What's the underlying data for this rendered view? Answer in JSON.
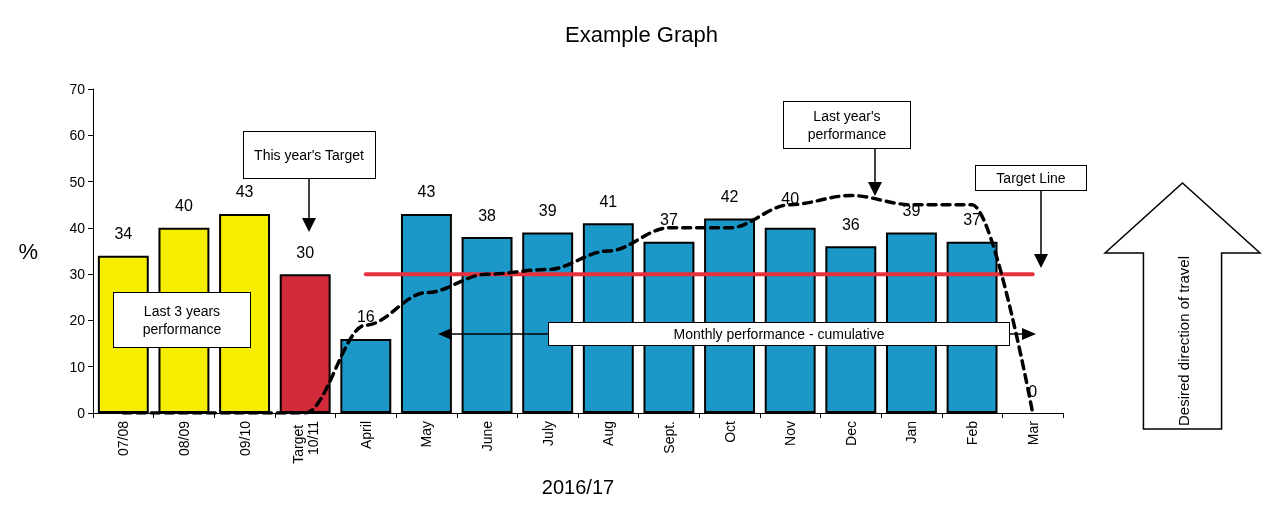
{
  "chart_data": {
    "type": "bar",
    "title": "Example Graph",
    "xlabel": "2016/17",
    "ylabel": "%",
    "categories": [
      "07/08",
      "08/09",
      "09/10",
      "Target 10/11",
      "April",
      "May",
      "June",
      "July",
      "Aug",
      "Sept.",
      "Oct",
      "Nov",
      "Dec",
      "Jan",
      "Feb",
      "Mar"
    ],
    "series": [
      {
        "values": [
          34,
          40,
          43,
          30,
          16,
          43,
          38,
          39,
          41,
          37,
          42,
          40,
          36,
          39,
          37,
          0
        ],
        "value_labels": [
          "34",
          "40",
          "43",
          "30",
          "16",
          "43",
          "38",
          "39",
          "41",
          "37",
          "42",
          "40",
          "36",
          "39",
          "37",
          "0"
        ],
        "colors": [
          "#f5ee00",
          "#f5ee00",
          "#f5ee00",
          "#d22b3a",
          "#1b98c7",
          "#1b98c7",
          "#1b98c7",
          "#1b98c7",
          "#1b98c7",
          "#1b98c7",
          "#1b98c7",
          "#1b98c7",
          "#1b98c7",
          "#1b98c7",
          "#1b98c7",
          "#1b98c7"
        ]
      },
      {
        "type": "line",
        "color": "#000000",
        "line_style": "dashed",
        "values": [
          0,
          0,
          0,
          0,
          19,
          26,
          30,
          31,
          35,
          40,
          40,
          45,
          47,
          45,
          45,
          0
        ]
      },
      {
        "type": "line",
        "color": "#e8313f",
        "line_style": "solid",
        "values": [
          null,
          null,
          null,
          null,
          30,
          30,
          30,
          30,
          30,
          30,
          30,
          30,
          30,
          30,
          30,
          30
        ]
      }
    ],
    "ylim": [
      0,
      70
    ],
    "yticks": [
      0,
      10,
      20,
      30,
      40,
      50,
      60,
      70
    ],
    "grid": false,
    "marker": "none",
    "annotations": [
      "This year's Target",
      "Last 3 years performance",
      "Last year's performance",
      "Target Line",
      "Monthly performance - cumulative",
      "Desired direction of travel"
    ]
  }
}
